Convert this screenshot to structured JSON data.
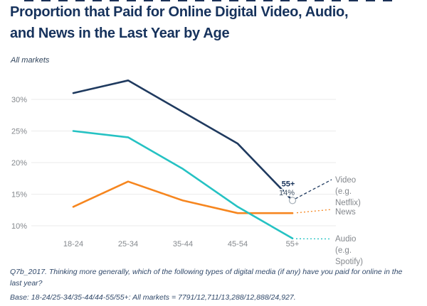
{
  "header": {
    "title": "Proportion that Paid for Online Digital Video, Audio, and News in the Last Year by Age",
    "title_lines": [
      "Proportion that Paid for Online Digital Video, Audio,",
      "and News in the Last Year by Age"
    ],
    "subtitle": "All markets"
  },
  "chart_data": {
    "type": "line",
    "title": "Proportion that Paid for Online Digital Video, Audio, and News in the Last Year by Age",
    "subtitle": "All markets",
    "categories": [
      "18-24",
      "25-34",
      "35-44",
      "45-54",
      "55+"
    ],
    "series": [
      {
        "name": "Video (e.g. Netflix)",
        "short_name": "Video",
        "color": "#1f3a5f",
        "values": [
          31,
          33,
          28,
          23,
          14
        ]
      },
      {
        "name": "News",
        "short_name": "News",
        "color": "#f6861f",
        "values": [
          13,
          17,
          14,
          12,
          12
        ]
      },
      {
        "name": "Audio (e.g. Spotify)",
        "short_name": "Audio",
        "color": "#25c2c3",
        "values": [
          25,
          24,
          19,
          13,
          8
        ]
      }
    ],
    "y_ticks": [
      "30%",
      "25%",
      "20%",
      "15%",
      "10%"
    ],
    "y_tick_values": [
      30,
      25,
      20,
      15,
      10
    ],
    "ylim": [
      6.5,
      34.5
    ],
    "xlabel": "",
    "ylabel": "",
    "grid": true,
    "legend_position": "right",
    "annotation": {
      "label": "55+",
      "value": "14%",
      "series": "Video (e.g. Netflix)",
      "category": "55+"
    }
  },
  "footer": {
    "question": "Q7b_2017. Thinking more generally, which of the following types of digital media (if any) have you paid for online in the last year?",
    "base": "Base: 18-24/25-34/35-44/44-55/55+: All markets = 7791/12,711/13,288/12,888/24,927."
  },
  "colors": {
    "title": "#16325c",
    "video_line": "#1f3a5f",
    "news_line": "#f6861f",
    "audio_line": "#25c2c3",
    "axis_text": "#84888d",
    "gridline": "#ebebeb",
    "footnote_text": "#31496a"
  }
}
